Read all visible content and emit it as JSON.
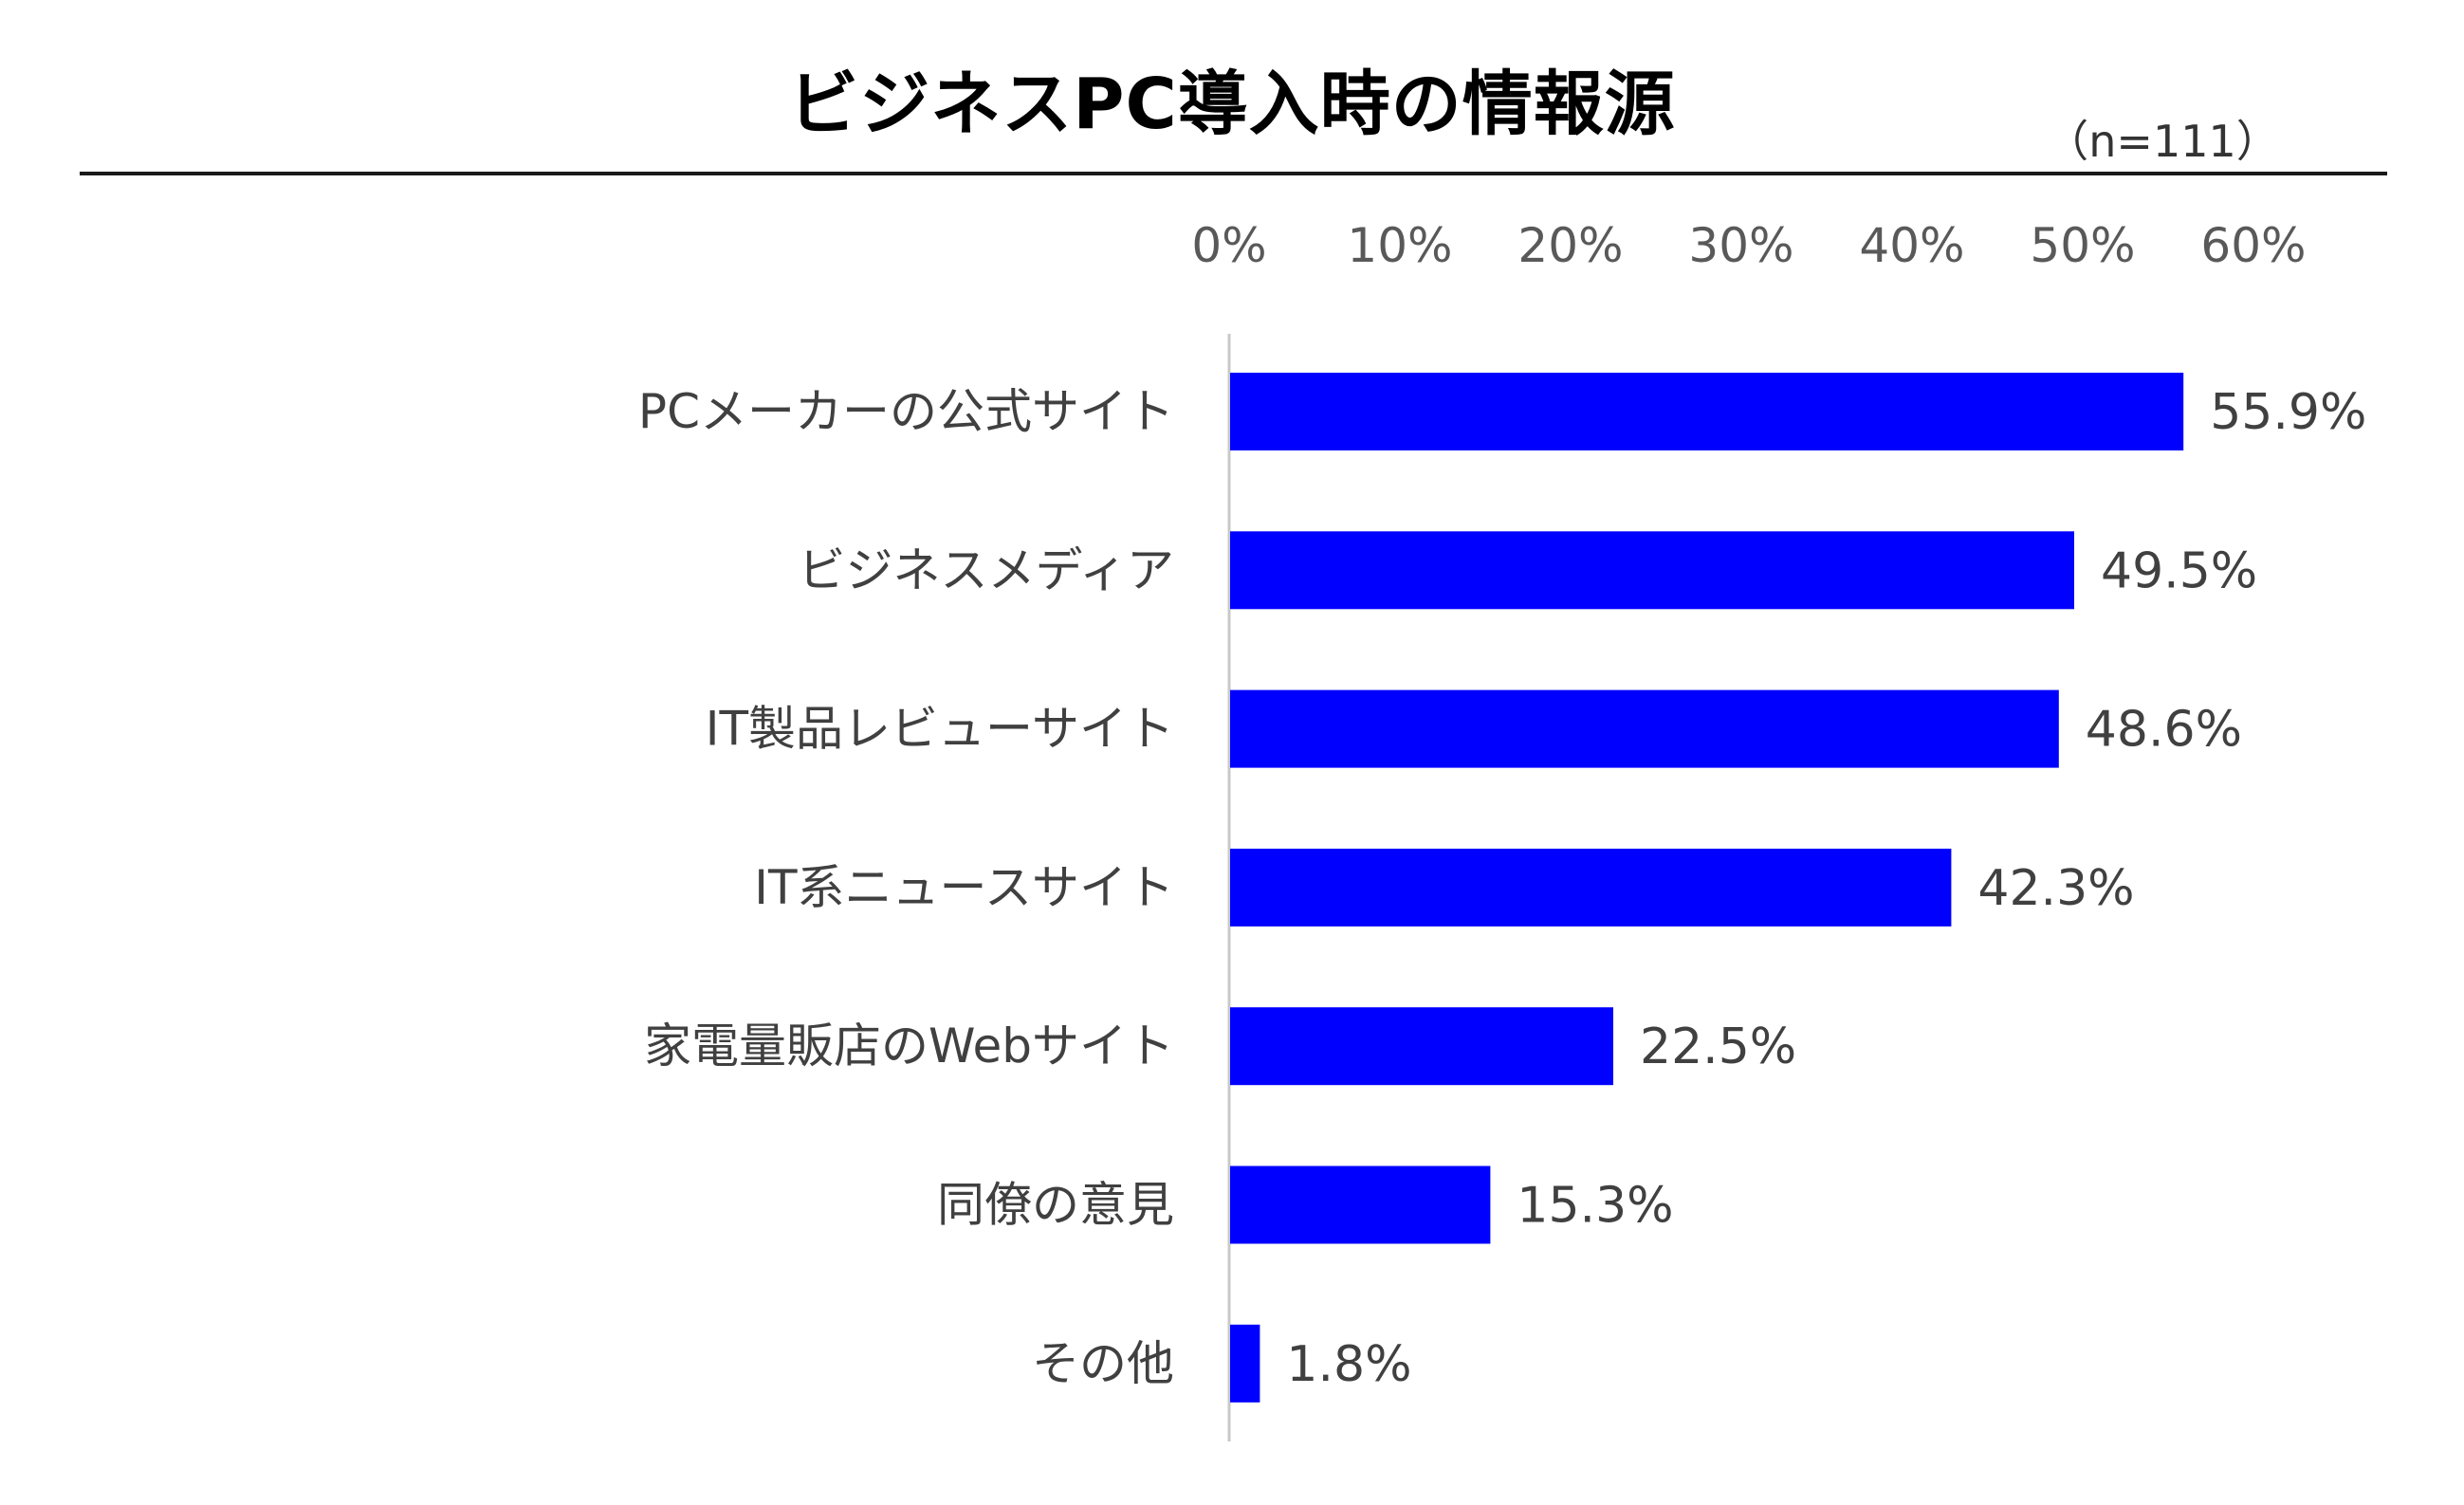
{
  "title": "ビジネスPC導入時の情報源",
  "sample_size": "（n=111）",
  "colors": {
    "bar": "#0000ff",
    "axis": "#c8c8c8",
    "tick_text": "#595959",
    "label_text": "#404040",
    "rule": "#1a1a1a"
  },
  "chart_data": {
    "type": "bar",
    "orientation": "horizontal",
    "title": "ビジネスPC導入時の情報源",
    "xlabel": "",
    "ylabel": "",
    "xlim": [
      0,
      60
    ],
    "x_ticks": [
      0,
      10,
      20,
      30,
      40,
      50,
      60
    ],
    "x_tick_labels": [
      "0%",
      "10%",
      "20%",
      "30%",
      "40%",
      "50%",
      "60%"
    ],
    "x_axis_position": "top",
    "grid": false,
    "legend": "none",
    "categories": [
      "PCメーカーの公式サイト",
      "ビジネスメディア",
      "IT製品レビューサイト",
      "IT系ニュースサイト",
      "家電量販店のWebサイト",
      "同僚の意見",
      "その他"
    ],
    "values": [
      55.9,
      49.5,
      48.6,
      42.3,
      22.5,
      15.3,
      1.8
    ],
    "value_labels": [
      "55.9%",
      "49.5%",
      "48.6%",
      "42.3%",
      "22.5%",
      "15.3%",
      "1.8%"
    ]
  }
}
